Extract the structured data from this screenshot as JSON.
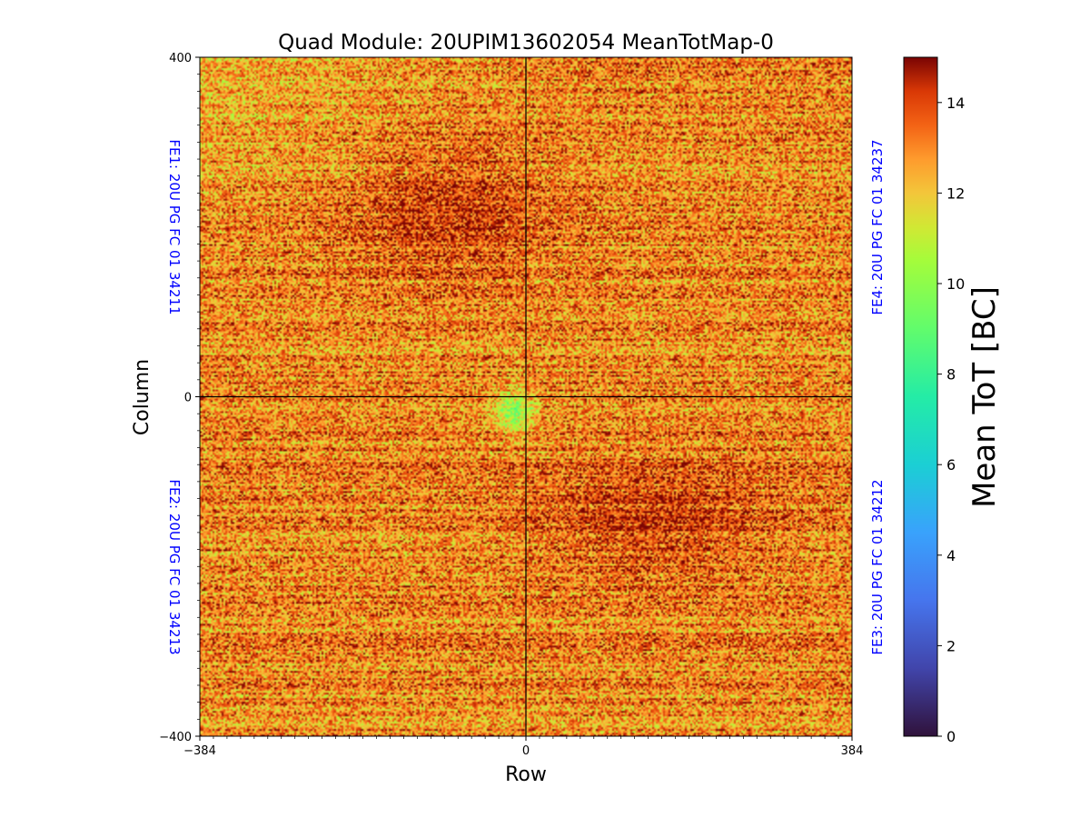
{
  "chart_data": {
    "type": "heatmap",
    "title": "Quad Module: 20UPIM13602054 MeanTotMap-0",
    "xlabel": "Row",
    "ylabel": "Column",
    "xlim": [
      -384,
      384
    ],
    "ylim": [
      -400,
      400
    ],
    "x_ticks": [
      -384,
      0,
      384
    ],
    "y_ticks": [
      -400,
      0,
      400
    ],
    "x_tick_labels": [
      "−384",
      "0",
      "384"
    ],
    "y_tick_labels": [
      "−400",
      "0",
      "400"
    ],
    "colormap": "turbo",
    "colorbar": {
      "label": "Mean ToT [BC]",
      "range": [
        0,
        15
      ],
      "ticks": [
        0,
        2,
        4,
        6,
        8,
        10,
        12,
        14
      ],
      "tick_labels": [
        "0",
        "2",
        "4",
        "6",
        "8",
        "10",
        "12",
        "14"
      ]
    },
    "typical_value_range": [
      9,
      15
    ],
    "typical_mean": 13,
    "divider_lines": {
      "x": 0,
      "y": 0,
      "color": "#000000"
    },
    "front_ends": [
      {
        "label": "FE1: 20U PG FC 01 34211",
        "quadrant": "top-left",
        "side": "left"
      },
      {
        "label": "FE2: 20U PG FC 01 34213",
        "quadrant": "bottom-left",
        "side": "left"
      },
      {
        "label": "FE3: 20U PG FC 01 34212",
        "quadrant": "bottom-right",
        "side": "right"
      },
      {
        "label": "FE4: 20U PG FC 01 34237",
        "quadrant": "top-right",
        "side": "right"
      }
    ],
    "label_color": "#0000ff",
    "grid": false,
    "legend": "none"
  }
}
